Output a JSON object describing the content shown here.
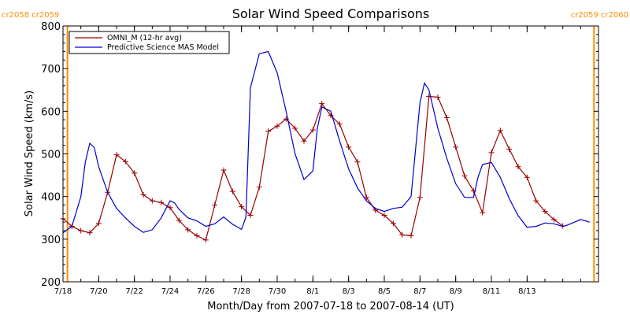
{
  "chart_data": {
    "type": "line",
    "title": "Solar Wind Speed Comparisons",
    "xlabel": "Month/Day from 2007-07-18 to 2007-08-14 (UT)",
    "ylabel": "Solar Wind Speed (km/s)",
    "xlim": [
      "2007-07-18",
      "2007-08-17"
    ],
    "ylim": [
      200,
      800
    ],
    "ytick_values": [
      200,
      300,
      400,
      500,
      600,
      700,
      800
    ],
    "ytick_labels": [
      "200",
      "300",
      "400",
      "500",
      "600",
      "700",
      "800"
    ],
    "xtick_dates": [
      "2007-07-18",
      "2007-07-20",
      "2007-07-22",
      "2007-07-24",
      "2007-07-26",
      "2007-07-28",
      "2007-07-30",
      "2007-08-01",
      "2007-08-03",
      "2007-08-05",
      "2007-08-07",
      "2007-08-09",
      "2007-08-11",
      "2007-08-13"
    ],
    "xtick_labels": [
      "7/18",
      "7/20",
      "7/22",
      "7/24",
      "7/26",
      "7/28",
      "7/30",
      "8/1",
      "8/3",
      "8/5",
      "8/7",
      "8/9",
      "8/11",
      "8/13"
    ],
    "legend_position": "top-left",
    "carrington_markers": [
      {
        "date": "2007-07-18 06:00",
        "label": "cr2058 cr2059",
        "color": "#ff8c00"
      },
      {
        "date": "2007-08-16 18:00",
        "label": "cr2059 cr2060",
        "color": "#ff8c00"
      }
    ],
    "series": [
      {
        "name": "OMNI_M (12-hr avg)",
        "color": "#990000",
        "marker": "plus",
        "x": [
          "2007-07-18 00:00",
          "2007-07-18 12:00",
          "2007-07-19 00:00",
          "2007-07-19 12:00",
          "2007-07-20 00:00",
          "2007-07-20 12:00",
          "2007-07-21 00:00",
          "2007-07-21 12:00",
          "2007-07-22 00:00",
          "2007-07-22 12:00",
          "2007-07-23 00:00",
          "2007-07-23 12:00",
          "2007-07-24 00:00",
          "2007-07-24 12:00",
          "2007-07-25 00:00",
          "2007-07-25 12:00",
          "2007-07-26 00:00",
          "2007-07-26 12:00",
          "2007-07-27 00:00",
          "2007-07-27 12:00",
          "2007-07-28 00:00",
          "2007-07-28 12:00",
          "2007-07-29 00:00",
          "2007-07-29 12:00",
          "2007-07-30 00:00",
          "2007-07-30 12:00",
          "2007-07-31 00:00",
          "2007-07-31 12:00",
          "2007-08-01 00:00",
          "2007-08-01 12:00",
          "2007-08-02 00:00",
          "2007-08-02 12:00",
          "2007-08-03 00:00",
          "2007-08-03 12:00",
          "2007-08-04 00:00",
          "2007-08-04 12:00",
          "2007-08-05 00:00",
          "2007-08-05 12:00",
          "2007-08-06 00:00",
          "2007-08-06 12:00",
          "2007-08-07 00:00",
          "2007-08-07 12:00",
          "2007-08-08 00:00",
          "2007-08-08 12:00",
          "2007-08-09 00:00",
          "2007-08-09 12:00",
          "2007-08-10 00:00",
          "2007-08-10 12:00",
          "2007-08-11 00:00",
          "2007-08-11 12:00",
          "2007-08-12 00:00",
          "2007-08-12 12:00",
          "2007-08-13 00:00",
          "2007-08-13 12:00",
          "2007-08-14 00:00",
          "2007-08-14 12:00",
          "2007-08-15 00:00"
        ],
        "y": [
          348,
          330,
          320,
          315,
          337,
          410,
          498,
          482,
          455,
          404,
          390,
          386,
          374,
          344,
          322,
          308,
          298,
          380,
          462,
          412,
          376,
          356,
          422,
          553,
          565,
          582,
          560,
          530,
          556,
          618,
          590,
          570,
          516,
          481,
          398,
          368,
          356,
          337,
          310,
          308,
          398,
          635,
          633,
          585,
          516,
          448,
          413,
          362,
          503,
          555,
          511,
          470,
          445,
          390,
          365,
          346,
          331
        ]
      },
      {
        "name": "Predictive Science MAS Model",
        "color": "#0000cc",
        "marker": "none",
        "x": [
          "2007-07-18 00:00",
          "2007-07-18 12:00",
          "2007-07-19 00:00",
          "2007-07-19 06:00",
          "2007-07-19 12:00",
          "2007-07-19 18:00",
          "2007-07-20 00:00",
          "2007-07-20 12:00",
          "2007-07-21 00:00",
          "2007-07-21 12:00",
          "2007-07-22 00:00",
          "2007-07-22 12:00",
          "2007-07-23 00:00",
          "2007-07-23 12:00",
          "2007-07-24 00:00",
          "2007-07-24 06:00",
          "2007-07-24 12:00",
          "2007-07-25 00:00",
          "2007-07-25 12:00",
          "2007-07-26 00:00",
          "2007-07-26 12:00",
          "2007-07-27 00:00",
          "2007-07-27 12:00",
          "2007-07-28 00:00",
          "2007-07-28 06:00",
          "2007-07-28 12:00",
          "2007-07-29 00:00",
          "2007-07-29 12:00",
          "2007-07-30 00:00",
          "2007-07-30 12:00",
          "2007-07-31 00:00",
          "2007-07-31 12:00",
          "2007-08-01 00:00",
          "2007-08-01 06:00",
          "2007-08-01 12:00",
          "2007-08-02 00:00",
          "2007-08-02 12:00",
          "2007-08-03 00:00",
          "2007-08-03 12:00",
          "2007-08-04 00:00",
          "2007-08-04 12:00",
          "2007-08-05 00:00",
          "2007-08-05 12:00",
          "2007-08-06 00:00",
          "2007-08-06 12:00",
          "2007-08-07 00:00",
          "2007-08-07 06:00",
          "2007-08-07 12:00",
          "2007-08-08 00:00",
          "2007-08-08 12:00",
          "2007-08-09 00:00",
          "2007-08-09 12:00",
          "2007-08-10 00:00",
          "2007-08-10 06:00",
          "2007-08-10 12:00",
          "2007-08-11 00:00",
          "2007-08-11 12:00",
          "2007-08-12 00:00",
          "2007-08-12 12:00",
          "2007-08-13 00:00",
          "2007-08-13 12:00",
          "2007-08-14 00:00",
          "2007-08-14 12:00",
          "2007-08-15 00:00",
          "2007-08-15 06:00",
          "2007-08-16 00:00",
          "2007-08-16 12:00"
        ],
        "y": [
          315,
          330,
          400,
          480,
          525,
          515,
          470,
          410,
          372,
          350,
          330,
          316,
          322,
          350,
          390,
          385,
          370,
          350,
          343,
          330,
          336,
          352,
          335,
          323,
          352,
          655,
          735,
          740,
          690,
          600,
          500,
          440,
          460,
          560,
          610,
          600,
          530,
          465,
          420,
          390,
          372,
          365,
          372,
          375,
          400,
          620,
          666,
          650,
          560,
          490,
          430,
          398,
          398,
          445,
          475,
          480,
          445,
          395,
          355,
          328,
          330,
          338,
          336,
          330,
          333,
          346,
          340
        ]
      }
    ]
  }
}
